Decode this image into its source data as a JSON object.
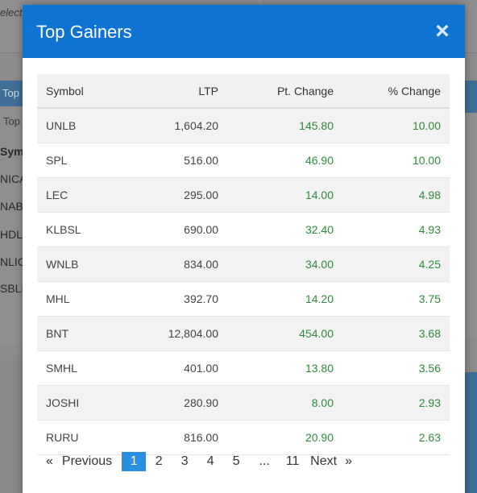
{
  "background": {
    "top_fragment": "elect",
    "panel_header": "Top",
    "panel_tab": "Top",
    "symbols_header": "Sym",
    "symbols": [
      "NICA",
      "NABI",
      "HDL",
      "NLIC",
      "SBLF"
    ]
  },
  "modal": {
    "title": "Top Gainers",
    "close_label": "×",
    "columns": [
      "Symbol",
      "LTP",
      "Pt. Change",
      "% Change"
    ],
    "rows": [
      {
        "symbol": "UNLB",
        "ltp": "1,604.20",
        "pt_change": "145.80",
        "pct_change": "10.00"
      },
      {
        "symbol": "SPL",
        "ltp": "516.00",
        "pt_change": "46.90",
        "pct_change": "10.00"
      },
      {
        "symbol": "LEC",
        "ltp": "295.00",
        "pt_change": "14.00",
        "pct_change": "4.98"
      },
      {
        "symbol": "KLBSL",
        "ltp": "690.00",
        "pt_change": "32.40",
        "pct_change": "4.93"
      },
      {
        "symbol": "WNLB",
        "ltp": "834.00",
        "pt_change": "34.00",
        "pct_change": "4.25"
      },
      {
        "symbol": "MHL",
        "ltp": "392.70",
        "pt_change": "14.20",
        "pct_change": "3.75"
      },
      {
        "symbol": "BNT",
        "ltp": "12,804.00",
        "pt_change": "454.00",
        "pct_change": "3.68"
      },
      {
        "symbol": "SMHL",
        "ltp": "401.00",
        "pt_change": "13.80",
        "pct_change": "3.56"
      },
      {
        "symbol": "JOSHI",
        "ltp": "280.90",
        "pt_change": "8.00",
        "pct_change": "2.93"
      },
      {
        "symbol": "RURU",
        "ltp": "816.00",
        "pt_change": "20.90",
        "pct_change": "2.63"
      }
    ],
    "positive_color": "#2e8b3a",
    "header_color": "#0f73d4"
  },
  "pagination": {
    "prev_arrow": "«",
    "prev_label": "Previous",
    "pages": [
      "1",
      "2",
      "3",
      "4",
      "5"
    ],
    "ellipsis": "...",
    "last_page": "11",
    "current_page": "1",
    "next_label": "Next",
    "next_arrow": "»"
  }
}
